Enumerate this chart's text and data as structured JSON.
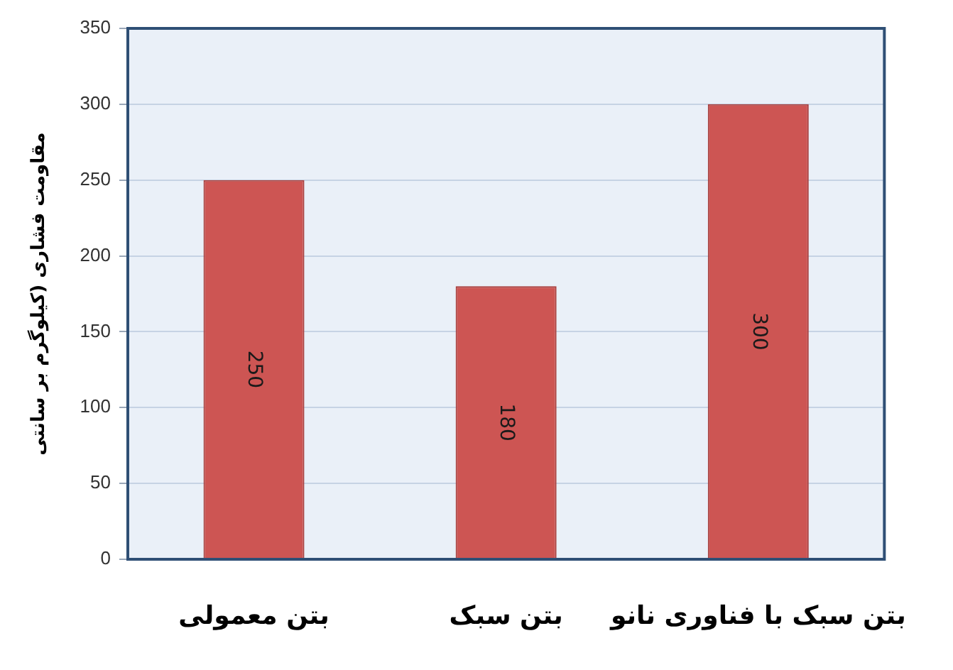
{
  "chart_data": {
    "type": "bar",
    "categories": [
      "بتن معمولی",
      "بتن سبک",
      "بتن سبک با فناوری نانو"
    ],
    "values": [
      250,
      180,
      300
    ],
    "color": "#cd5553",
    "ylabel": "مقاومت فشاری (کیلوگرم بر سانتی",
    "ylim": [
      0,
      350
    ],
    "yticks": [
      0,
      50,
      100,
      150,
      200,
      250,
      300,
      350
    ],
    "grid": "y",
    "data_labels": true
  }
}
